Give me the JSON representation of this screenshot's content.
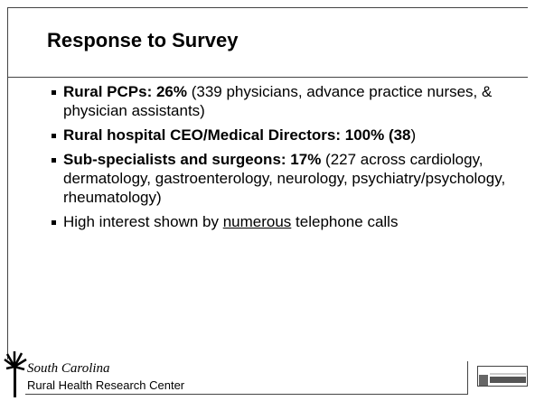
{
  "title": "Response to Survey",
  "bullets": [
    [
      {
        "text": "Rural PCPs: 26%",
        "style": "bold"
      },
      {
        "text": " (339 physicians, advance practice nurses, & physician assistants)",
        "style": "normal"
      }
    ],
    [
      {
        "text": "Rural hospital CEO/Medical Directors: 100% (38",
        "style": "bold"
      },
      {
        "text": ")",
        "style": "normal"
      }
    ],
    [
      {
        "text": "Sub-specialists and surgeons: 17%",
        "style": "bold"
      },
      {
        "text": " (227 across cardiology, dermatology, gastroenterology, neurology, psychiatry/psychology, rheumatology)",
        "style": "normal"
      }
    ],
    [
      {
        "text": "High interest shown by ",
        "style": "normal"
      },
      {
        "text": "numerous",
        "style": "underline"
      },
      {
        "text": " telephone calls",
        "style": "normal"
      }
    ]
  ],
  "footer": {
    "state": "South Carolina",
    "center": "Rural Health Research Center"
  }
}
